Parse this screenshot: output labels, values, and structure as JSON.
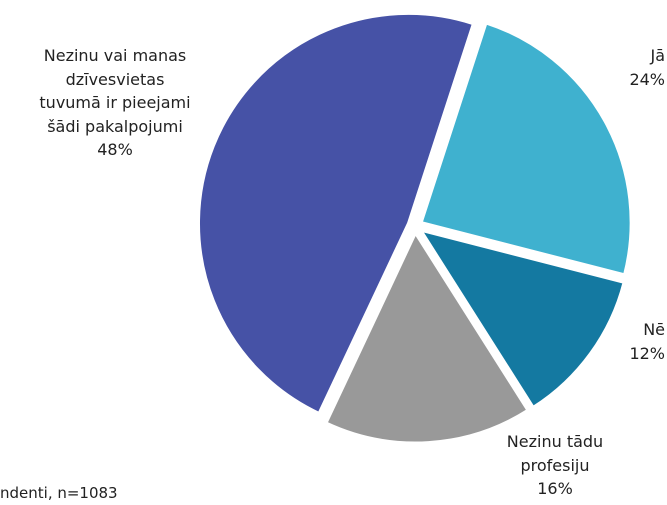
{
  "chart_data": {
    "type": "pie",
    "categories": [
      "Jā",
      "Nē",
      "Nezinu tādu\nprofesiju",
      "Nezinu vai manas\ndzīvesvietas\ntuvumā ir pieejami\nšādi pakalpojumi"
    ],
    "values": [
      24,
      12,
      16,
      48
    ],
    "value_labels": [
      "24%",
      "12%",
      "16%",
      "48%"
    ],
    "colors": [
      "#3fb1cf",
      "#1479a1",
      "#999999",
      "#4652a6"
    ],
    "note": "ndenti, n=1083"
  }
}
